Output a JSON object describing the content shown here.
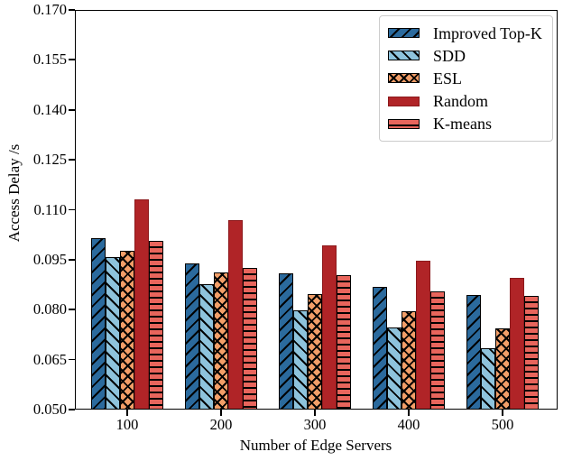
{
  "figure": {
    "background": "#ffffff",
    "axis_color": "#000000"
  },
  "chart_data": {
    "type": "bar",
    "title": "",
    "xlabel": "Number of Edge Servers",
    "ylabel": "Access Delay /s",
    "categories": [
      "100",
      "200",
      "300",
      "400",
      "500"
    ],
    "series": [
      {
        "name": "Improved Top-K",
        "color": "#2b6a9d",
        "edge": "#000000",
        "hatch": "/",
        "values": [
          0.1015,
          0.094,
          0.091,
          0.0868,
          0.0845
        ]
      },
      {
        "name": "SDD",
        "color": "#8ec3dc",
        "edge": "#000000",
        "hatch": "\\",
        "values": [
          0.0958,
          0.0877,
          0.0797,
          0.0746,
          0.0685
        ]
      },
      {
        "name": "ESL",
        "color": "#f29e68",
        "edge": "#000000",
        "hatch": "x",
        "values": [
          0.0978,
          0.0912,
          0.0847,
          0.0795,
          0.0743
        ]
      },
      {
        "name": "Random",
        "color": "#b02427",
        "edge": "#8c191c",
        "hatch": "",
        "values": [
          0.113,
          0.1068,
          0.0994,
          0.0946,
          0.0896
        ]
      },
      {
        "name": "K-means",
        "color": "#e8655c",
        "edge": "#000000",
        "hatch": "-",
        "values": [
          0.1006,
          0.0926,
          0.0903,
          0.0854,
          0.0841
        ]
      }
    ],
    "ylim": [
      0.05,
      0.17
    ],
    "yticks": [
      0.05,
      0.065,
      0.08,
      0.095,
      0.11,
      0.125,
      0.14,
      0.155,
      0.17
    ],
    "ytick_format_decimals": 3,
    "grid": false,
    "legend_position": "upper right"
  }
}
